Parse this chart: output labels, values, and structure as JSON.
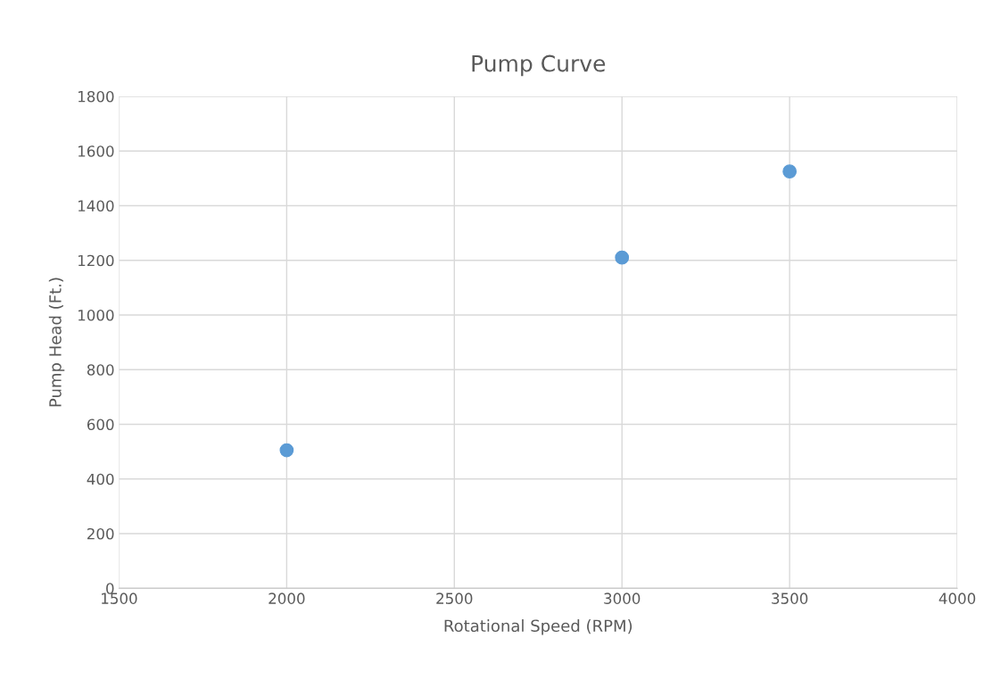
{
  "chart_data": {
    "type": "scatter",
    "title": "Pump Curve",
    "xlabel": "Rotational Speed (RPM)",
    "ylabel": "Pump Head (Ft.)",
    "x": [
      2000,
      3000,
      3500
    ],
    "series": [
      {
        "color": "#5b9bd5",
        "values": [
          505,
          1210,
          1525
        ]
      }
    ],
    "xlim": [
      1500,
      4000
    ],
    "xticks": [
      1500,
      2000,
      2500,
      3000,
      3500,
      4000
    ],
    "ylim": [
      0,
      1800
    ],
    "yticks": [
      0,
      200,
      400,
      600,
      800,
      1000,
      1200,
      1400,
      1600,
      1800
    ],
    "grid": true,
    "marker": "circle"
  }
}
